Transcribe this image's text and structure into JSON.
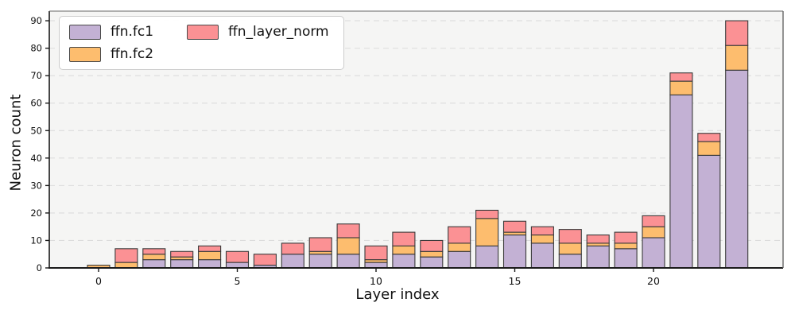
{
  "chart_data": {
    "type": "bar",
    "stacked": true,
    "title": "",
    "xlabel": "Layer index",
    "ylabel": "Neuron count",
    "categories": [
      0,
      1,
      2,
      3,
      4,
      5,
      6,
      7,
      8,
      9,
      10,
      11,
      12,
      13,
      14,
      15,
      16,
      17,
      18,
      19,
      20,
      21,
      22,
      23
    ],
    "series": [
      {
        "name": "ffn.fc1",
        "color": "#c3b1d4",
        "values": [
          0,
          0,
          3,
          3,
          3,
          2,
          1,
          5,
          5,
          5,
          2,
          5,
          4,
          6,
          8,
          12,
          9,
          5,
          8,
          7,
          11,
          63,
          41,
          72
        ]
      },
      {
        "name": "ffn.fc2",
        "color": "#fdbd6e",
        "values": [
          1,
          2,
          2,
          1,
          3,
          0,
          0,
          0,
          1,
          6,
          1,
          3,
          2,
          3,
          10,
          1,
          3,
          4,
          1,
          2,
          4,
          5,
          5,
          9
        ]
      },
      {
        "name": "ffn_layer_norm",
        "color": "#fb9194",
        "values": [
          0,
          5,
          2,
          2,
          2,
          4,
          4,
          4,
          5,
          5,
          5,
          5,
          4,
          6,
          3,
          4,
          3,
          5,
          3,
          4,
          4,
          3,
          3,
          9
        ]
      }
    ],
    "totals": [
      1,
      7,
      7,
      6,
      8,
      6,
      5,
      9,
      11,
      16,
      8,
      13,
      10,
      15,
      21,
      17,
      15,
      14,
      12,
      13,
      19,
      71,
      49,
      90
    ],
    "x_ticks": [
      0,
      5,
      10,
      15,
      20
    ],
    "y_ticks": [
      0,
      10,
      20,
      30,
      40,
      50,
      60,
      70,
      80,
      90
    ],
    "ylim": [
      0,
      93.5
    ],
    "grid": "horizontal-dashed",
    "legend_position": "upper-left",
    "colors": {
      "plot_background": "#f5f5f4",
      "figure_background": "#ffffff",
      "gridline": "#dcdcdc",
      "bar_edge": "#3a3a3a",
      "spine": "#1a1a1a",
      "tick_label": "#111111"
    }
  }
}
